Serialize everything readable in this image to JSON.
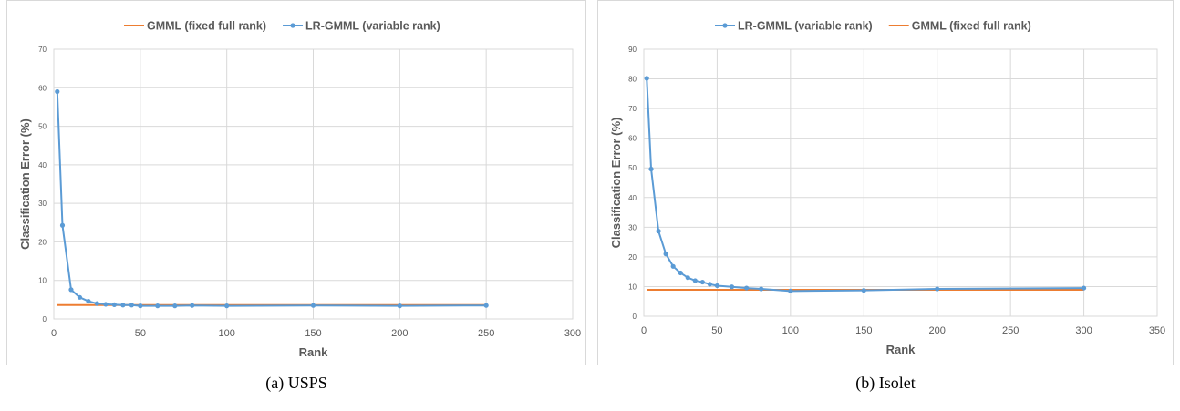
{
  "chart_data": [
    {
      "type": "line",
      "caption": "(a) USPS",
      "xlabel": "Rank",
      "ylabel": "Classification Error (%)",
      "xlim": [
        0,
        300
      ],
      "ylim": [
        0,
        70
      ],
      "xticks": [
        0,
        50,
        100,
        150,
        200,
        250,
        300
      ],
      "yticks": [
        0,
        10,
        20,
        30,
        40,
        50,
        60,
        70
      ],
      "grid": true,
      "legend_position": "top",
      "legend_order": [
        "GMML (fixed full rank)",
        "LR-GMML (variable rank)"
      ],
      "series": [
        {
          "name": "LR-GMML (variable rank)",
          "color": "#5b9bd5",
          "markers": true,
          "x": [
            2,
            5,
            10,
            15,
            20,
            25,
            30,
            35,
            40,
            45,
            50,
            60,
            70,
            80,
            100,
            150,
            200,
            250
          ],
          "y": [
            59.0,
            24.3,
            7.6,
            5.6,
            4.6,
            4.0,
            3.8,
            3.7,
            3.6,
            3.6,
            3.4,
            3.4,
            3.4,
            3.5,
            3.4,
            3.5,
            3.4,
            3.5
          ]
        },
        {
          "name": "GMML (fixed full rank)",
          "color": "#ed7d31",
          "markers": false,
          "x": [
            2,
            250
          ],
          "y": [
            3.6,
            3.6
          ]
        }
      ]
    },
    {
      "type": "line",
      "caption": "(b) Isolet",
      "xlabel": "Rank",
      "ylabel": "Classification Error (%)",
      "xlim": [
        0,
        350
      ],
      "ylim": [
        0,
        90
      ],
      "xticks": [
        0,
        50,
        100,
        150,
        200,
        250,
        300,
        350
      ],
      "yticks": [
        0,
        10,
        20,
        30,
        40,
        50,
        60,
        70,
        80,
        90
      ],
      "grid": true,
      "legend_position": "top",
      "legend_order": [
        "LR-GMML (variable rank)",
        "GMML (fixed full rank)"
      ],
      "series": [
        {
          "name": "LR-GMML (variable rank)",
          "color": "#5b9bd5",
          "markers": true,
          "x": [
            2,
            5,
            10,
            15,
            20,
            25,
            30,
            35,
            40,
            45,
            50,
            60,
            70,
            80,
            100,
            150,
            200,
            300
          ],
          "y": [
            80.2,
            49.6,
            28.7,
            21.0,
            16.8,
            14.6,
            13.0,
            12.0,
            11.5,
            10.8,
            10.3,
            9.9,
            9.5,
            9.2,
            8.5,
            8.7,
            9.2,
            9.5
          ]
        },
        {
          "name": "GMML (fixed full rank)",
          "color": "#ed7d31",
          "markers": false,
          "x": [
            2,
            300
          ],
          "y": [
            8.9,
            8.9
          ]
        }
      ]
    }
  ]
}
